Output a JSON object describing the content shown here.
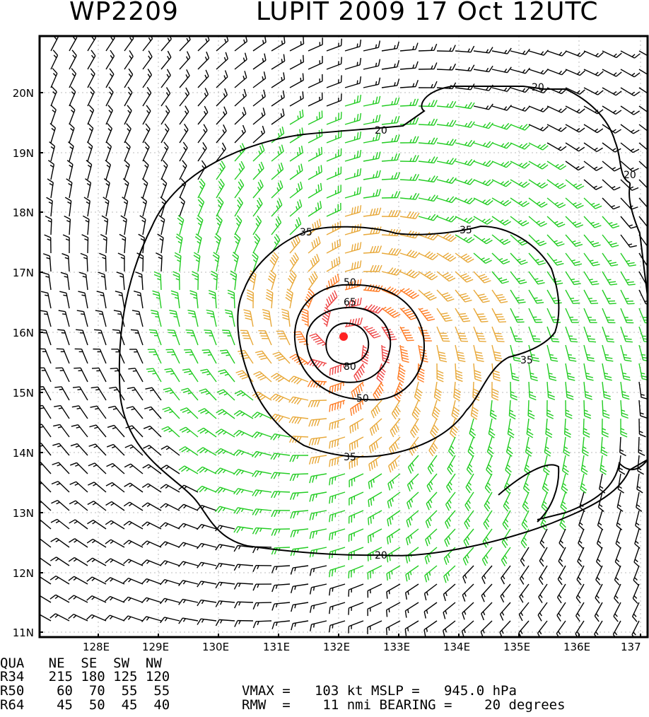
{
  "header": {
    "storm_id": "WP2209",
    "storm_info": "LUPIT 2009 17 Oct 12UTC"
  },
  "map": {
    "lat_labels": [
      "20N",
      "19N",
      "18N",
      "17N",
      "16N",
      "15N",
      "14N",
      "13N",
      "12N",
      "11N"
    ],
    "lon_labels": [
      "128E",
      "129E",
      "130E",
      "131E",
      "132E",
      "133E",
      "134E",
      "135E",
      "136E",
      "137"
    ],
    "storm_center": {
      "lat": 15.95,
      "lon": 132.1
    },
    "contour_labels": [
      "20",
      "20",
      "20",
      "20",
      "35",
      "35",
      "35",
      "35",
      "50",
      "50",
      "65",
      "80"
    ],
    "wind_colors": {
      "below_20": "#000000",
      "20_to_35": "#22cc22",
      "35_to_50": "#e8a838",
      "50_to_65": "#ff7a22",
      "64_plus": "#ee4444",
      "center": "#ff2222"
    }
  },
  "table": {
    "header": "QUA   NE  SE  SW  NW",
    "rows": [
      "R34   215 180 125 120",
      "R50    60  70  55  55",
      "R64    45  50  45  40"
    ],
    "vmax_line": "VMAX =   103 kt MSLP =   945.0 hPa",
    "rmw_line": "RMW  =    11 nmi BEARING =    20 degrees"
  }
}
